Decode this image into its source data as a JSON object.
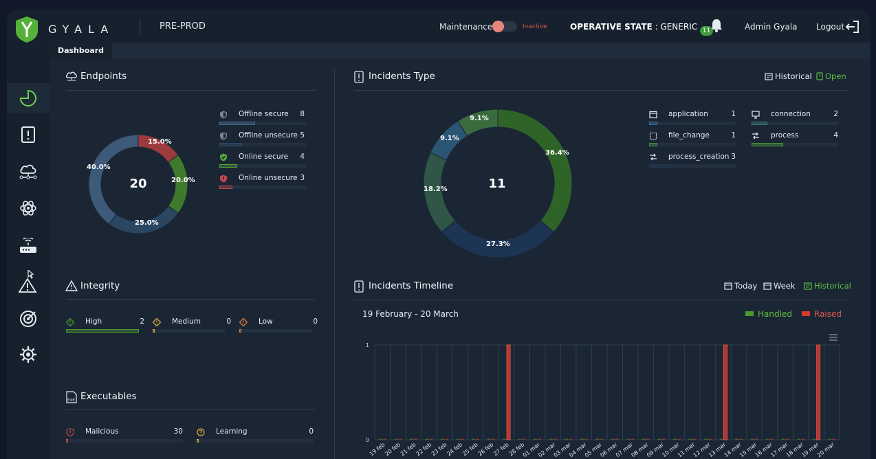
{
  "app": {
    "brand": "GYALA",
    "environment": "PRE-PROD"
  },
  "header": {
    "maintenance_label": "Maintenance",
    "maintenance_state": "Inactive",
    "operative_label": "OPERATIVE STATE",
    "operative_value": "GENERIC",
    "notifications_count": "11",
    "user": "Admin Gyala",
    "logout": "Logout"
  },
  "tabs": [
    {
      "label": "Dashboard"
    }
  ],
  "sidebar": {
    "items": [
      {
        "icon": "dashboard-pie-icon",
        "active": true
      },
      {
        "icon": "incident-document-icon"
      },
      {
        "icon": "cloud-network-icon"
      },
      {
        "icon": "atom-icon"
      },
      {
        "icon": "router-icon"
      },
      {
        "icon": "alert-cursor-icon"
      },
      {
        "icon": "target-icon"
      },
      {
        "icon": "settings-gear-icon"
      }
    ]
  },
  "endpoints": {
    "title": "Endpoints",
    "total": "20",
    "legend": [
      {
        "label": "Offline secure",
        "count": "8",
        "value": 8,
        "color": "#4a6b8e",
        "icon": "shield-icon"
      },
      {
        "label": "Offline unsecure",
        "count": "5",
        "value": 5,
        "color": "#2e4b68",
        "icon": "shield-icon"
      },
      {
        "label": "Online secure",
        "count": "4",
        "value": 4,
        "color": "#55a535",
        "icon": "shield-check-icon"
      },
      {
        "label": "Online unsecure",
        "count": "3",
        "value": 3,
        "color": "#c6454a",
        "icon": "shield-alert-icon"
      }
    ],
    "chart_data": {
      "type": "pie",
      "labels": [
        "Online unsecure",
        "Online secure",
        "Offline unsecure",
        "Offline secure"
      ],
      "values": [
        15.0,
        20.0,
        25.0,
        40.0
      ],
      "value_labels": [
        "15.0%",
        "20.0%",
        "25.0%",
        "40.0%"
      ],
      "colors": [
        "#9c3a3e",
        "#3e7a2c",
        "#2b4661",
        "#3d5a78"
      ]
    }
  },
  "incidents_type": {
    "title": "Incidents Type",
    "total": "11",
    "filters": [
      {
        "label": "Historical",
        "active": false
      },
      {
        "label": "Open",
        "active": true
      }
    ],
    "legend": [
      {
        "label": "application",
        "count": "1",
        "value": 1,
        "color": "#3b6ea1",
        "icon": "window-icon"
      },
      {
        "label": "connection",
        "count": "2",
        "value": 2,
        "color": "#3e7a6a",
        "icon": "monitor-icon"
      },
      {
        "label": "file_change",
        "count": "1",
        "value": 1,
        "color": "#4c8f3c",
        "icon": "file-square-icon"
      },
      {
        "label": "process",
        "count": "4",
        "value": 4,
        "color": "#4c9a2a",
        "icon": "process-icon"
      },
      {
        "label": "process_creation",
        "count": "3",
        "value": 3,
        "color": "#1e3652",
        "icon": "process-creation-icon"
      }
    ],
    "chart_data": {
      "type": "pie",
      "labels": [
        "process",
        "process_creation",
        "connection",
        "application",
        "file_change"
      ],
      "values": [
        36.4,
        27.3,
        18.2,
        9.1,
        9.1
      ],
      "value_labels": [
        "36.4%",
        "27.3%",
        "18.2%",
        "9.1%",
        "9.1%"
      ],
      "colors": [
        "#2f6428",
        "#1d3552",
        "#2f5646",
        "#2b5575",
        "#3a6b3e"
      ]
    }
  },
  "integrity": {
    "title": "Integrity",
    "items": [
      {
        "label": "High",
        "count": "2",
        "value": 2,
        "color": "#4c9a2a",
        "icon": "diamond-high-icon"
      },
      {
        "label": "Medium",
        "count": "0",
        "value": 0,
        "color": "#e0a93a",
        "icon": "diamond-medium-icon"
      },
      {
        "label": "Low",
        "count": "0",
        "value": 0,
        "color": "#e07a3a",
        "icon": "diamond-low-icon"
      }
    ]
  },
  "executables": {
    "title": "Executables",
    "items": [
      {
        "label": "Malicious",
        "count": "30",
        "value": 30,
        "color": "#c6454a",
        "icon": "malicious-icon"
      },
      {
        "label": "Learning",
        "count": "0",
        "value": 0,
        "color": "#e0a93a",
        "icon": "learning-icon"
      }
    ]
  },
  "timeline": {
    "title": "Incidents Timeline",
    "filters": [
      {
        "label": "Today",
        "active": false
      },
      {
        "label": "Week",
        "active": false
      },
      {
        "label": "Historical",
        "active": true
      }
    ],
    "date_range": "19 February - 20 March",
    "chart_data": {
      "type": "bar",
      "categories": [
        "19 feb",
        "20 feb",
        "21 feb",
        "22 feb",
        "23 feb",
        "24 feb",
        "25 feb",
        "26 feb",
        "27 feb",
        "28 feb",
        "01 mar",
        "02 mar",
        "03 mar",
        "04 mar",
        "05 mar",
        "06 mar",
        "07 mar",
        "08 mar",
        "09 mar",
        "10 mar",
        "11 mar",
        "12 mar",
        "13 mar",
        "14 mar",
        "15 mar",
        "16 mar",
        "17 mar",
        "18 mar",
        "19 mar",
        "20 mar"
      ],
      "series": [
        {
          "name": "Handled",
          "color": "#4c9a2a",
          "values": [
            0,
            0,
            0,
            0,
            0,
            0,
            0,
            0,
            0,
            0,
            0,
            0,
            0,
            0,
            0,
            0,
            0,
            0,
            0,
            0,
            0,
            0,
            0,
            0,
            0,
            0,
            0,
            0,
            0,
            0
          ]
        },
        {
          "name": "Raised",
          "color": "#d63b2f",
          "values": [
            0,
            0,
            0,
            0,
            0,
            0,
            0,
            0,
            1,
            0,
            0,
            0,
            0,
            0,
            0,
            0,
            0,
            0,
            0,
            0,
            0,
            0,
            1,
            0,
            0,
            0,
            0,
            0,
            1,
            0
          ]
        }
      ],
      "yticks": [
        "0",
        "1"
      ],
      "ylim": [
        0,
        1
      ],
      "grid": true,
      "legend": "top-right"
    }
  }
}
